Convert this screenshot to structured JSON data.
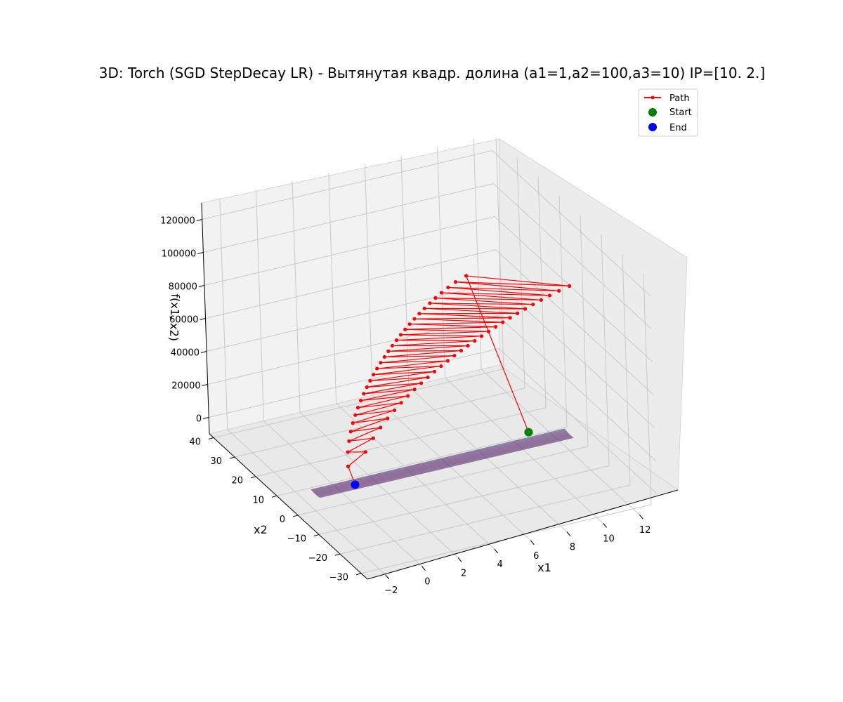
{
  "chart_data": {
    "type": "surface3d",
    "title": "3D: Torch (SGD StepDecay LR) - Вытянутая квадр. долина (a1=1,a2=100,a3=10) IP=[10.  2.]",
    "xlabel": "x1",
    "ylabel": "x2",
    "zlabel": "f(x1, x2)",
    "x_ticks": [
      -2,
      0,
      2,
      4,
      6,
      8,
      10,
      12
    ],
    "y_ticks": [
      -30,
      -20,
      -10,
      0,
      10,
      20,
      30,
      40
    ],
    "z_ticks": [
      0,
      20000,
      40000,
      60000,
      80000,
      100000,
      120000
    ],
    "x_range": [
      -3,
      13
    ],
    "y_range": [
      -33,
      42
    ],
    "z_range": [
      -10000,
      130000
    ],
    "grid": true,
    "legend_position": "top-right",
    "legend": [
      {
        "label": "Path",
        "color": "#ff0000",
        "marker": "line-dot"
      },
      {
        "label": "Start",
        "color": "#008000",
        "marker": "dot"
      },
      {
        "label": "End",
        "color": "#0000ff",
        "marker": "dot"
      }
    ],
    "start_point": {
      "x1": 10,
      "x2": 2,
      "f": 4100
    },
    "end_point": {
      "x1": 0.2,
      "x2": 0.1,
      "f": 0
    },
    "path_summary": {
      "iterations_drawn": 60,
      "oscillation_high_peak_f": 125000,
      "secondary_peak_f": 66000
    },
    "surface_colormap": "viridis"
  }
}
